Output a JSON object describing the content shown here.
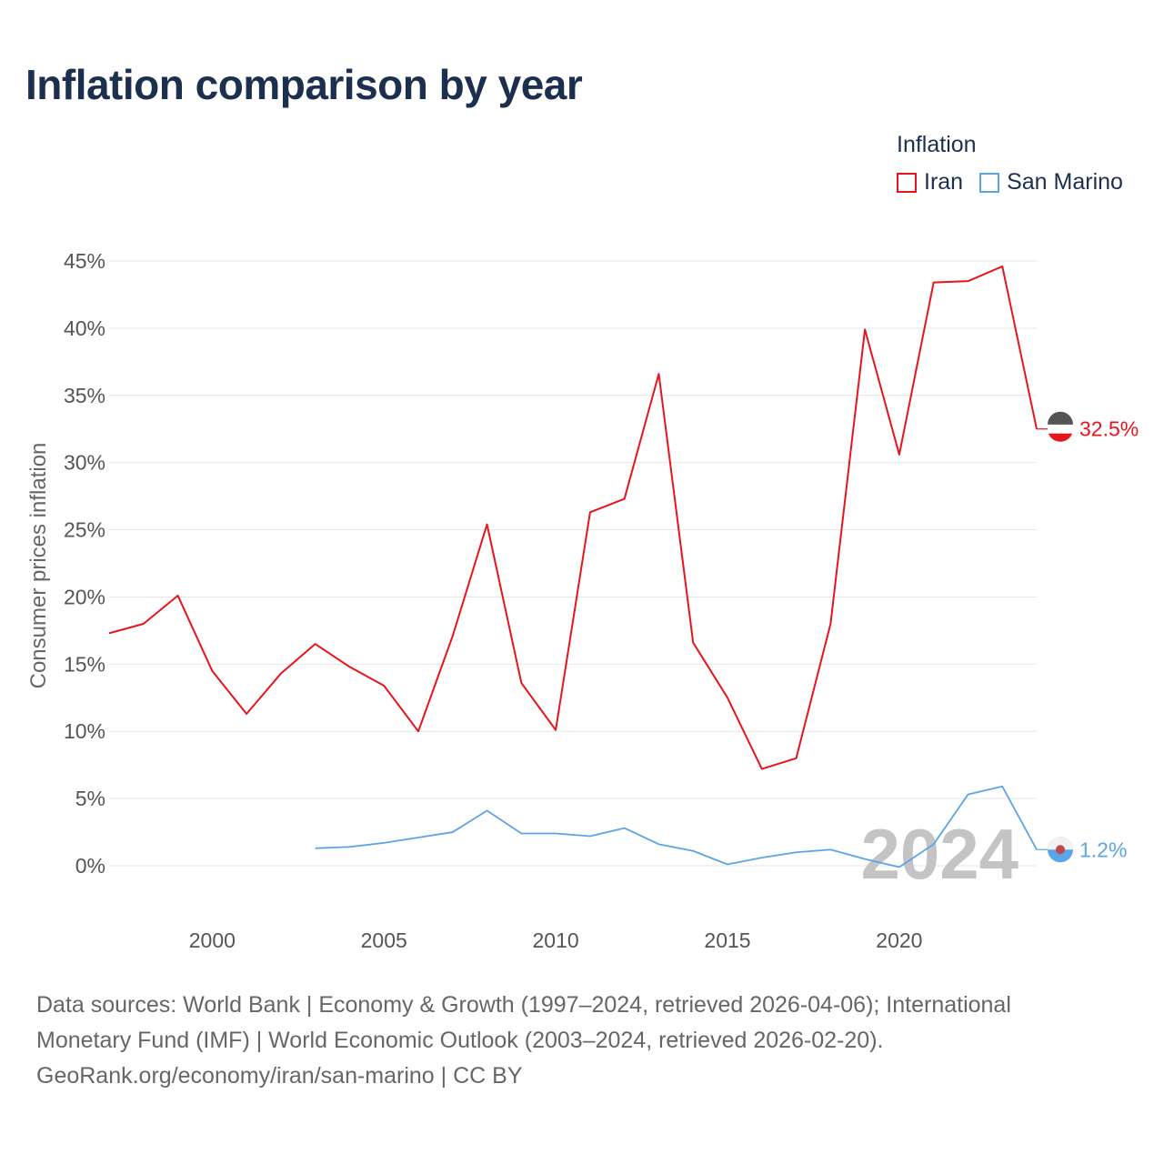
{
  "title": "Inflation comparison by year",
  "legend": {
    "title": "Inflation",
    "items": [
      {
        "name": "Iran",
        "color": "#e8141c"
      },
      {
        "name": "San Marino",
        "color": "#5ba4e6"
      }
    ]
  },
  "year_label": "2024",
  "end_labels": {
    "iran": "32.5%",
    "san_marino": "1.2%"
  },
  "footer": {
    "line1": "Data sources: World Bank | Economy & Growth (1997–2024, retrieved 2026-04-06); International Monetary Fund (IMF) | World Economic Outlook (2003–2024, retrieved 2026-02-20).",
    "line2": "GeoRank.org/economy/iran/san-marino | CC BY"
  },
  "chart_data": {
    "type": "line",
    "title": "Inflation comparison by year",
    "xlabel": "",
    "ylabel": "Consumer prices inflation",
    "xlim": [
      1997,
      2024
    ],
    "ylim": [
      -3,
      47
    ],
    "x_ticks": [
      2000,
      2005,
      2010,
      2015,
      2020
    ],
    "y_ticks": [
      0,
      5,
      10,
      15,
      20,
      25,
      30,
      35,
      40,
      45
    ],
    "y_tick_labels": [
      "0%",
      "5%",
      "10%",
      "15%",
      "20%",
      "25%",
      "30%",
      "35%",
      "40%",
      "45%"
    ],
    "series": [
      {
        "name": "Iran",
        "color": "#e8141c",
        "x": [
          1997,
          1998,
          1999,
          2000,
          2001,
          2002,
          2003,
          2004,
          2005,
          2006,
          2007,
          2008,
          2009,
          2010,
          2011,
          2012,
          2013,
          2014,
          2015,
          2016,
          2017,
          2018,
          2019,
          2020,
          2021,
          2022,
          2023,
          2024
        ],
        "values": [
          17.3,
          18.0,
          20.1,
          14.5,
          11.3,
          14.3,
          16.5,
          14.8,
          13.4,
          10.0,
          17.1,
          25.4,
          13.6,
          10.1,
          26.3,
          27.3,
          36.6,
          16.6,
          12.5,
          7.2,
          8.0,
          18.0,
          39.9,
          30.6,
          43.4,
          43.5,
          44.6,
          32.5
        ]
      },
      {
        "name": "San Marino",
        "color": "#5ba4e6",
        "x": [
          2003,
          2004,
          2005,
          2006,
          2007,
          2008,
          2009,
          2010,
          2011,
          2012,
          2013,
          2014,
          2015,
          2016,
          2017,
          2018,
          2019,
          2020,
          2021,
          2022,
          2023,
          2024
        ],
        "values": [
          1.3,
          1.4,
          1.7,
          2.1,
          2.5,
          4.1,
          2.4,
          2.4,
          2.2,
          2.8,
          1.6,
          1.1,
          0.1,
          0.6,
          1.0,
          1.2,
          0.5,
          -0.1,
          1.6,
          5.3,
          5.9,
          1.2
        ]
      }
    ],
    "grid": true,
    "legend_position": "top-right"
  }
}
